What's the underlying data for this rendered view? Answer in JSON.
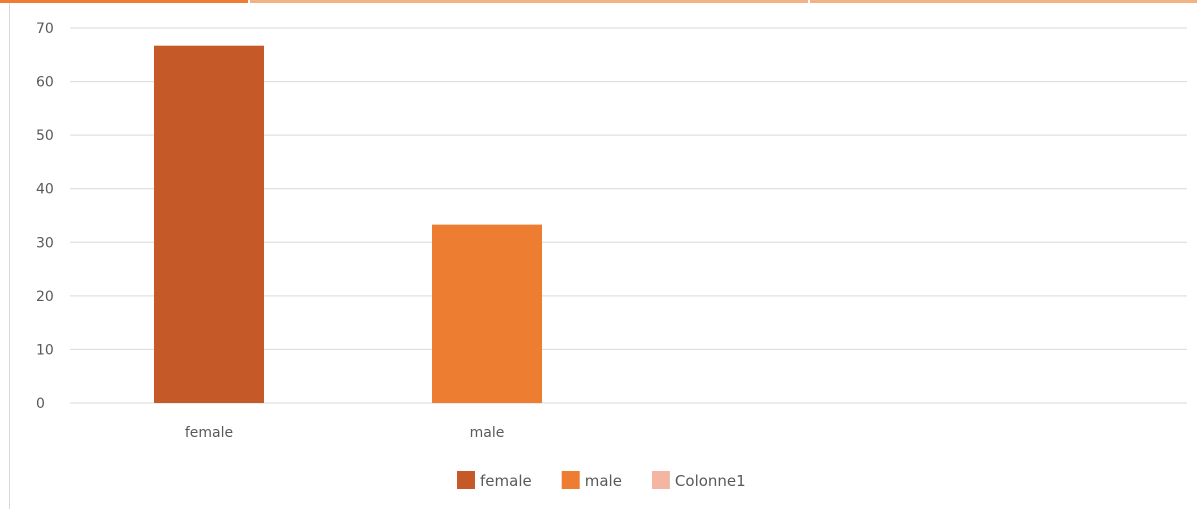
{
  "chart_data": {
    "type": "bar",
    "title": "",
    "xlabel": "",
    "ylabel": "",
    "categories": [
      "female",
      "male"
    ],
    "series": [
      {
        "name": "female",
        "values": [
          66.7,
          null
        ],
        "color": "#c55a28"
      },
      {
        "name": "male",
        "values": [
          null,
          33.3
        ],
        "color": "#ed7d31"
      },
      {
        "name": "Colonne1",
        "values": [
          null,
          null
        ],
        "color": "#f4b6a2"
      }
    ],
    "ylim": [
      0,
      70
    ],
    "yticks": [
      "0",
      "10",
      "20",
      "30",
      "40",
      "50",
      "60",
      "70"
    ],
    "grid": true,
    "legend_position": "bottom"
  },
  "colors": {
    "gridline": "#d9d9d9",
    "tab_active": "#ed7d31",
    "tab_inactive": "#f4b183"
  }
}
